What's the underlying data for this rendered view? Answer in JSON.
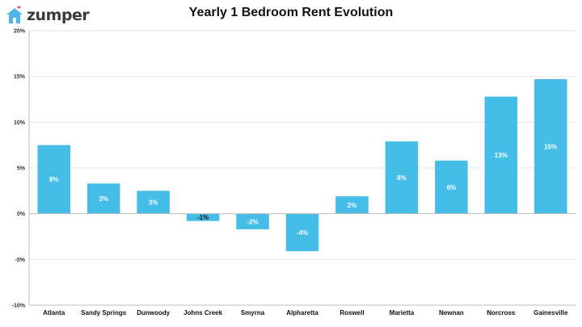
{
  "logo": {
    "text": "zumper",
    "icon": "house-heart-icon",
    "brand_color": "#4fb4e6"
  },
  "chart_data": {
    "type": "bar",
    "title": "Yearly 1 Bedroom Rent Evolution",
    "xlabel": "",
    "ylabel": "",
    "categories": [
      "Atlanta",
      "Sandy Springs",
      "Dunwoody",
      "Johns Creek",
      "Smyrna",
      "Alpharetta",
      "Roswell",
      "Marietta",
      "Newnan",
      "Norcross",
      "Gainesville"
    ],
    "values": [
      7.5,
      3.3,
      2.5,
      -0.8,
      -1.7,
      -4.1,
      1.9,
      7.9,
      5.8,
      12.8,
      14.7
    ],
    "data_labels": [
      "8%",
      "3%",
      "3%",
      "-1%",
      "-2%",
      "-4%",
      "2%",
      "8%",
      "6%",
      "13%",
      "15%"
    ],
    "ylim": [
      -10,
      20
    ],
    "yticks": [
      -10,
      -5,
      0,
      5,
      10,
      15,
      20
    ],
    "ytick_labels": [
      "-10%",
      "-5%",
      "0%",
      "5%",
      "10%",
      "15%",
      "20%"
    ],
    "grid": true,
    "bar_color": "#45bde8",
    "grid_color": "#e3e3e3"
  }
}
